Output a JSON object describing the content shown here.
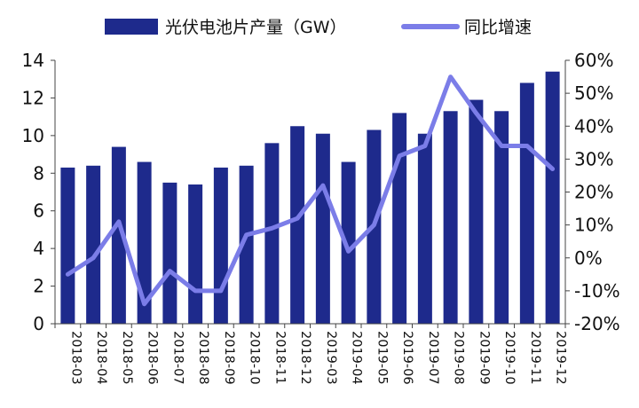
{
  "chart_data": {
    "type": "bar",
    "categories": [
      "2018-03",
      "2018-04",
      "2018-05",
      "2018-06",
      "2018-07",
      "2018-08",
      "2018-09",
      "2018-10",
      "2018-11",
      "2018-12",
      "2019-03",
      "2019-04",
      "2019-05",
      "2019-06",
      "2019-07",
      "2019-08",
      "2019-09",
      "2019-10",
      "2019-11",
      "2019-12"
    ],
    "series": [
      {
        "name": "光伏电池片产量（GW）",
        "type": "bar",
        "axis": "left",
        "color": "#1e2a8c",
        "values": [
          8.3,
          8.4,
          9.4,
          8.6,
          7.5,
          7.4,
          8.3,
          8.4,
          9.6,
          10.5,
          10.1,
          8.6,
          10.3,
          11.2,
          10.1,
          11.3,
          11.9,
          11.3,
          12.8,
          13.4
        ]
      },
      {
        "name": "同比增速",
        "type": "line",
        "axis": "right",
        "color": "#7b7de8",
        "values": [
          -5,
          0,
          11,
          -14,
          -4,
          -10,
          -10,
          7,
          9,
          12,
          22,
          2,
          10,
          31,
          34,
          55,
          44,
          34,
          34,
          27
        ]
      }
    ],
    "y_left": {
      "min": 0,
      "max": 14,
      "ticks": [
        "0",
        "2",
        "4",
        "6",
        "8",
        "10",
        "12",
        "14"
      ]
    },
    "y_right": {
      "min": -20,
      "max": 60,
      "ticks": [
        "-20%",
        "-10%",
        "0%",
        "10%",
        "20%",
        "30%",
        "40%",
        "50%",
        "60%"
      ]
    },
    "legend": "top",
    "grid": false
  }
}
